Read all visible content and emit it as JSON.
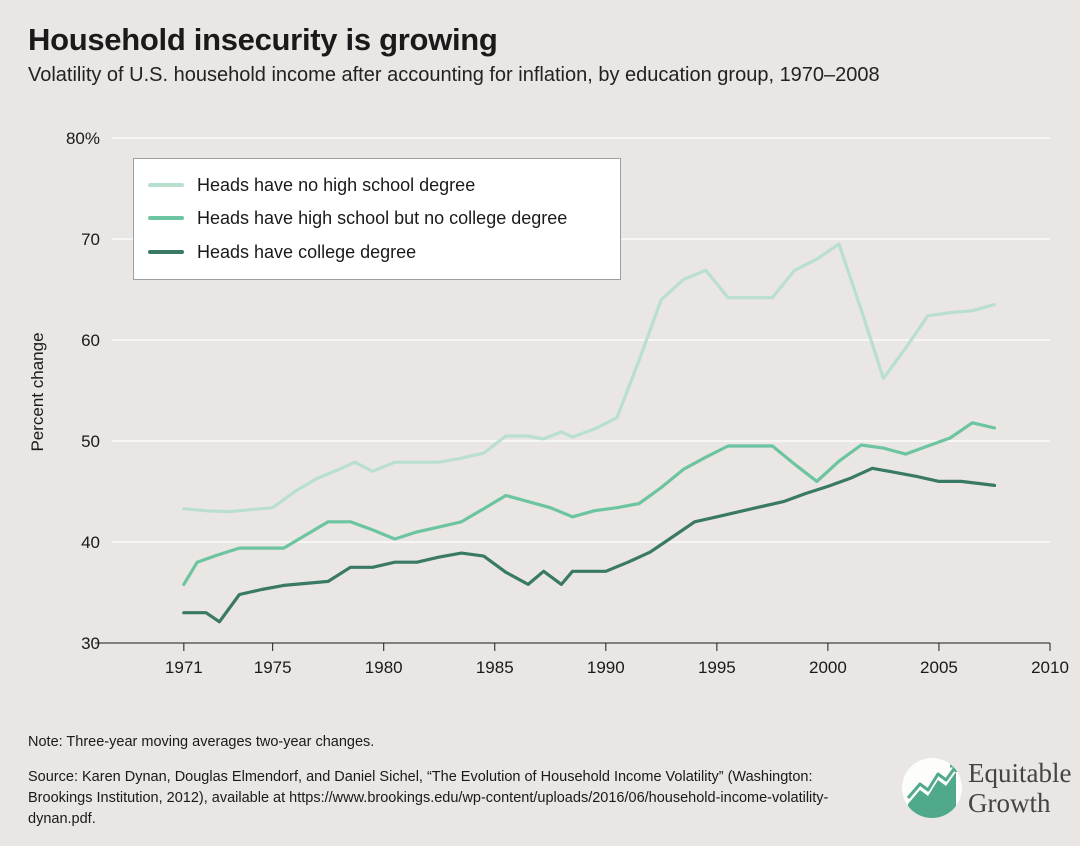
{
  "title": "Household insecurity is growing",
  "subtitle": "Volatility of U.S. household income after accounting for inflation, by education group, 1970–2008",
  "note": "Note: Three-year moving averages two-year changes.",
  "source": "Source: Karen Dynan, Douglas Elmendorf, and Daniel Sichel, “The Evolution of Household Income Volatility” (Washington: Brookings Institution, 2012), available at https://www.brookings.edu/wp-content/uploads/2016/06/household-income-volatility-dynan.pdf.",
  "logo": {
    "line1": "Equitable",
    "line2": "Growth",
    "icon": "rising-chart-icon"
  },
  "colors": {
    "background": "#e9e6e4",
    "no_high_school": "#b9dfcf",
    "high_school": "#6cc4a1",
    "college": "#3a7a64",
    "logo_green": "#4fa98a"
  },
  "chart_data": {
    "type": "line",
    "ylabel": "Percent change",
    "xlabel": "",
    "xlim": [
      1967,
      2010
    ],
    "ylim": [
      30,
      80
    ],
    "x_ticks": [
      {
        "value": 1971,
        "label": "1971"
      },
      {
        "value": 1975,
        "label": "1975"
      },
      {
        "value": 1980,
        "label": "1980"
      },
      {
        "value": 1985,
        "label": "1985"
      },
      {
        "value": 1990,
        "label": "1990"
      },
      {
        "value": 1995,
        "label": "1995"
      },
      {
        "value": 2000,
        "label": "2000"
      },
      {
        "value": 2005,
        "label": "2005"
      },
      {
        "value": 2010,
        "label": "2010"
      }
    ],
    "y_ticks": [
      {
        "value": 30,
        "label": "30"
      },
      {
        "value": 40,
        "label": "40"
      },
      {
        "value": 50,
        "label": "50"
      },
      {
        "value": 60,
        "label": "60"
      },
      {
        "value": 70,
        "label": "70"
      },
      {
        "value": 80,
        "label": "80%"
      }
    ],
    "grid": "horizontal",
    "legend_position": "top-left",
    "series": [
      {
        "name": "Heads have no high school degree",
        "color": "#b9dfcf",
        "x": [
          1971,
          1972,
          1973,
          1974,
          1975,
          1976,
          1977,
          1978,
          1978.7,
          1979.5,
          1980.5,
          1981.5,
          1982.5,
          1983.5,
          1984.5,
          1985.5,
          1986.5,
          1987.2,
          1988,
          1988.5,
          1989.5,
          1990.5,
          1991.5,
          1992.5,
          1993.5,
          1994.5,
          1995.5,
          1996.5,
          1997.5,
          1998.5,
          1999.5,
          2000.5,
          2001.5,
          2002.5,
          2003.5,
          2004.5,
          2005.5,
          2006.5,
          2007.5
        ],
        "values": [
          43.3,
          43.1,
          43.0,
          43.2,
          43.4,
          45.0,
          46.3,
          47.2,
          47.9,
          47.0,
          47.9,
          47.9,
          47.9,
          48.3,
          48.8,
          50.5,
          50.5,
          50.2,
          50.9,
          50.4,
          51.2,
          52.3,
          58.0,
          64.0,
          66.0,
          66.9,
          64.2,
          64.2,
          64.2,
          66.9,
          68.0,
          69.5,
          63.0,
          56.2,
          59.2,
          62.4,
          62.7,
          62.9,
          63.5
        ]
      },
      {
        "name": "Heads have high school but no college degree",
        "color": "#6cc4a1",
        "x": [
          1971,
          1971.6,
          1972.5,
          1973.5,
          1974.5,
          1975.5,
          1976.5,
          1977.5,
          1978.5,
          1979.5,
          1980.5,
          1981.5,
          1982.5,
          1983.5,
          1984.5,
          1985.5,
          1986.5,
          1987.5,
          1988.5,
          1989.5,
          1990.5,
          1991.5,
          1992.5,
          1993.5,
          1994.5,
          1995.5,
          1996.5,
          1997.5,
          1998.5,
          1999.5,
          2000.5,
          2001.5,
          2002.5,
          2003.5,
          2004.5,
          2005.5,
          2006.5,
          2007.5
        ],
        "values": [
          35.8,
          38.0,
          38.7,
          39.4,
          39.4,
          39.4,
          40.7,
          42.0,
          42.0,
          41.2,
          40.3,
          41.0,
          41.5,
          42.0,
          43.3,
          44.6,
          44.0,
          43.4,
          42.5,
          43.1,
          43.4,
          43.8,
          45.4,
          47.2,
          48.4,
          49.5,
          49.5,
          49.5,
          47.7,
          46.0,
          48.0,
          49.6,
          49.3,
          48.7,
          49.5,
          50.3,
          51.8,
          51.3
        ]
      },
      {
        "name": "Heads have college degree",
        "color": "#3a7a64",
        "x": [
          1971,
          1972,
          1972.6,
          1973.5,
          1974.5,
          1975.5,
          1976.5,
          1977.5,
          1978.5,
          1979.5,
          1980.5,
          1981.5,
          1982.5,
          1983.5,
          1984.5,
          1985.5,
          1986.5,
          1987.2,
          1988,
          1988.5,
          1989,
          1990,
          1991,
          1992,
          1993,
          1994,
          1995,
          1996,
          1997,
          1998,
          1999,
          2000,
          2001,
          2002,
          2003,
          2004,
          2005,
          2006,
          2007.5
        ],
        "values": [
          33.0,
          33.0,
          32.1,
          34.8,
          35.3,
          35.7,
          35.9,
          36.1,
          37.5,
          37.5,
          38.0,
          38.0,
          38.5,
          38.9,
          38.6,
          37.0,
          35.8,
          37.1,
          35.8,
          37.1,
          37.1,
          37.1,
          38.0,
          39.0,
          40.5,
          42.0,
          42.5,
          43.0,
          43.5,
          44.0,
          44.8,
          45.5,
          46.3,
          47.3,
          46.9,
          46.5,
          46.0,
          46.0,
          45.6
        ]
      }
    ]
  }
}
